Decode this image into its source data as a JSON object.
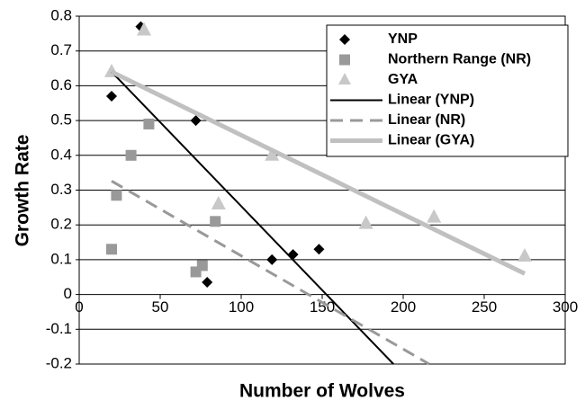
{
  "chart_data": {
    "type": "scatter",
    "x_label": "Number of Wolves",
    "y_label": "Growth Rate",
    "xlim": [
      0,
      300
    ],
    "xticks": [
      0,
      50,
      100,
      150,
      200,
      250,
      300
    ],
    "ylim": [
      -0.2,
      0.8
    ],
    "yticks": [
      -0.2,
      -0.1,
      0,
      0.1,
      0.2,
      0.3,
      0.4,
      0.5,
      0.6,
      0.7,
      0.8
    ],
    "grid": true,
    "legend": "upper right",
    "series": [
      {
        "name": "YNP",
        "color": "#000000",
        "marker": "diamond",
        "x": [
          38,
          20,
          72,
          79,
          119,
          132,
          148
        ],
        "values": [
          0.77,
          0.57,
          0.5,
          0.035,
          0.1,
          0.115,
          0.13
        ]
      },
      {
        "name": "Northern Range (NR)",
        "color": "#999999",
        "marker": "square",
        "x": [
          20,
          23,
          32,
          43,
          72,
          76,
          84
        ],
        "values": [
          0.13,
          0.285,
          0.4,
          0.49,
          0.065,
          0.083,
          0.21
        ]
      },
      {
        "name": "GYA",
        "color": "#c8c8c8",
        "marker": "triangle",
        "x": [
          20,
          40,
          86,
          119,
          177,
          219,
          275
        ],
        "values": [
          0.64,
          0.76,
          0.26,
          0.4,
          0.204,
          0.222,
          0.11
        ]
      },
      {
        "name": "Linear (YNP)",
        "color": "#000000",
        "line": "solid",
        "width": 2,
        "x": [
          20,
          194
        ],
        "values": [
          0.64,
          -0.2
        ]
      },
      {
        "name": "Linear (NR)",
        "color": "#999999",
        "line": "dashed",
        "width": 3,
        "x": [
          20,
          216
        ],
        "values": [
          0.326,
          -0.2
        ]
      },
      {
        "name": "Linear (GYA)",
        "color": "#c0c0c0",
        "line": "solid",
        "width": 5,
        "x": [
          20,
          275
        ],
        "values": [
          0.64,
          0.06
        ]
      }
    ]
  }
}
